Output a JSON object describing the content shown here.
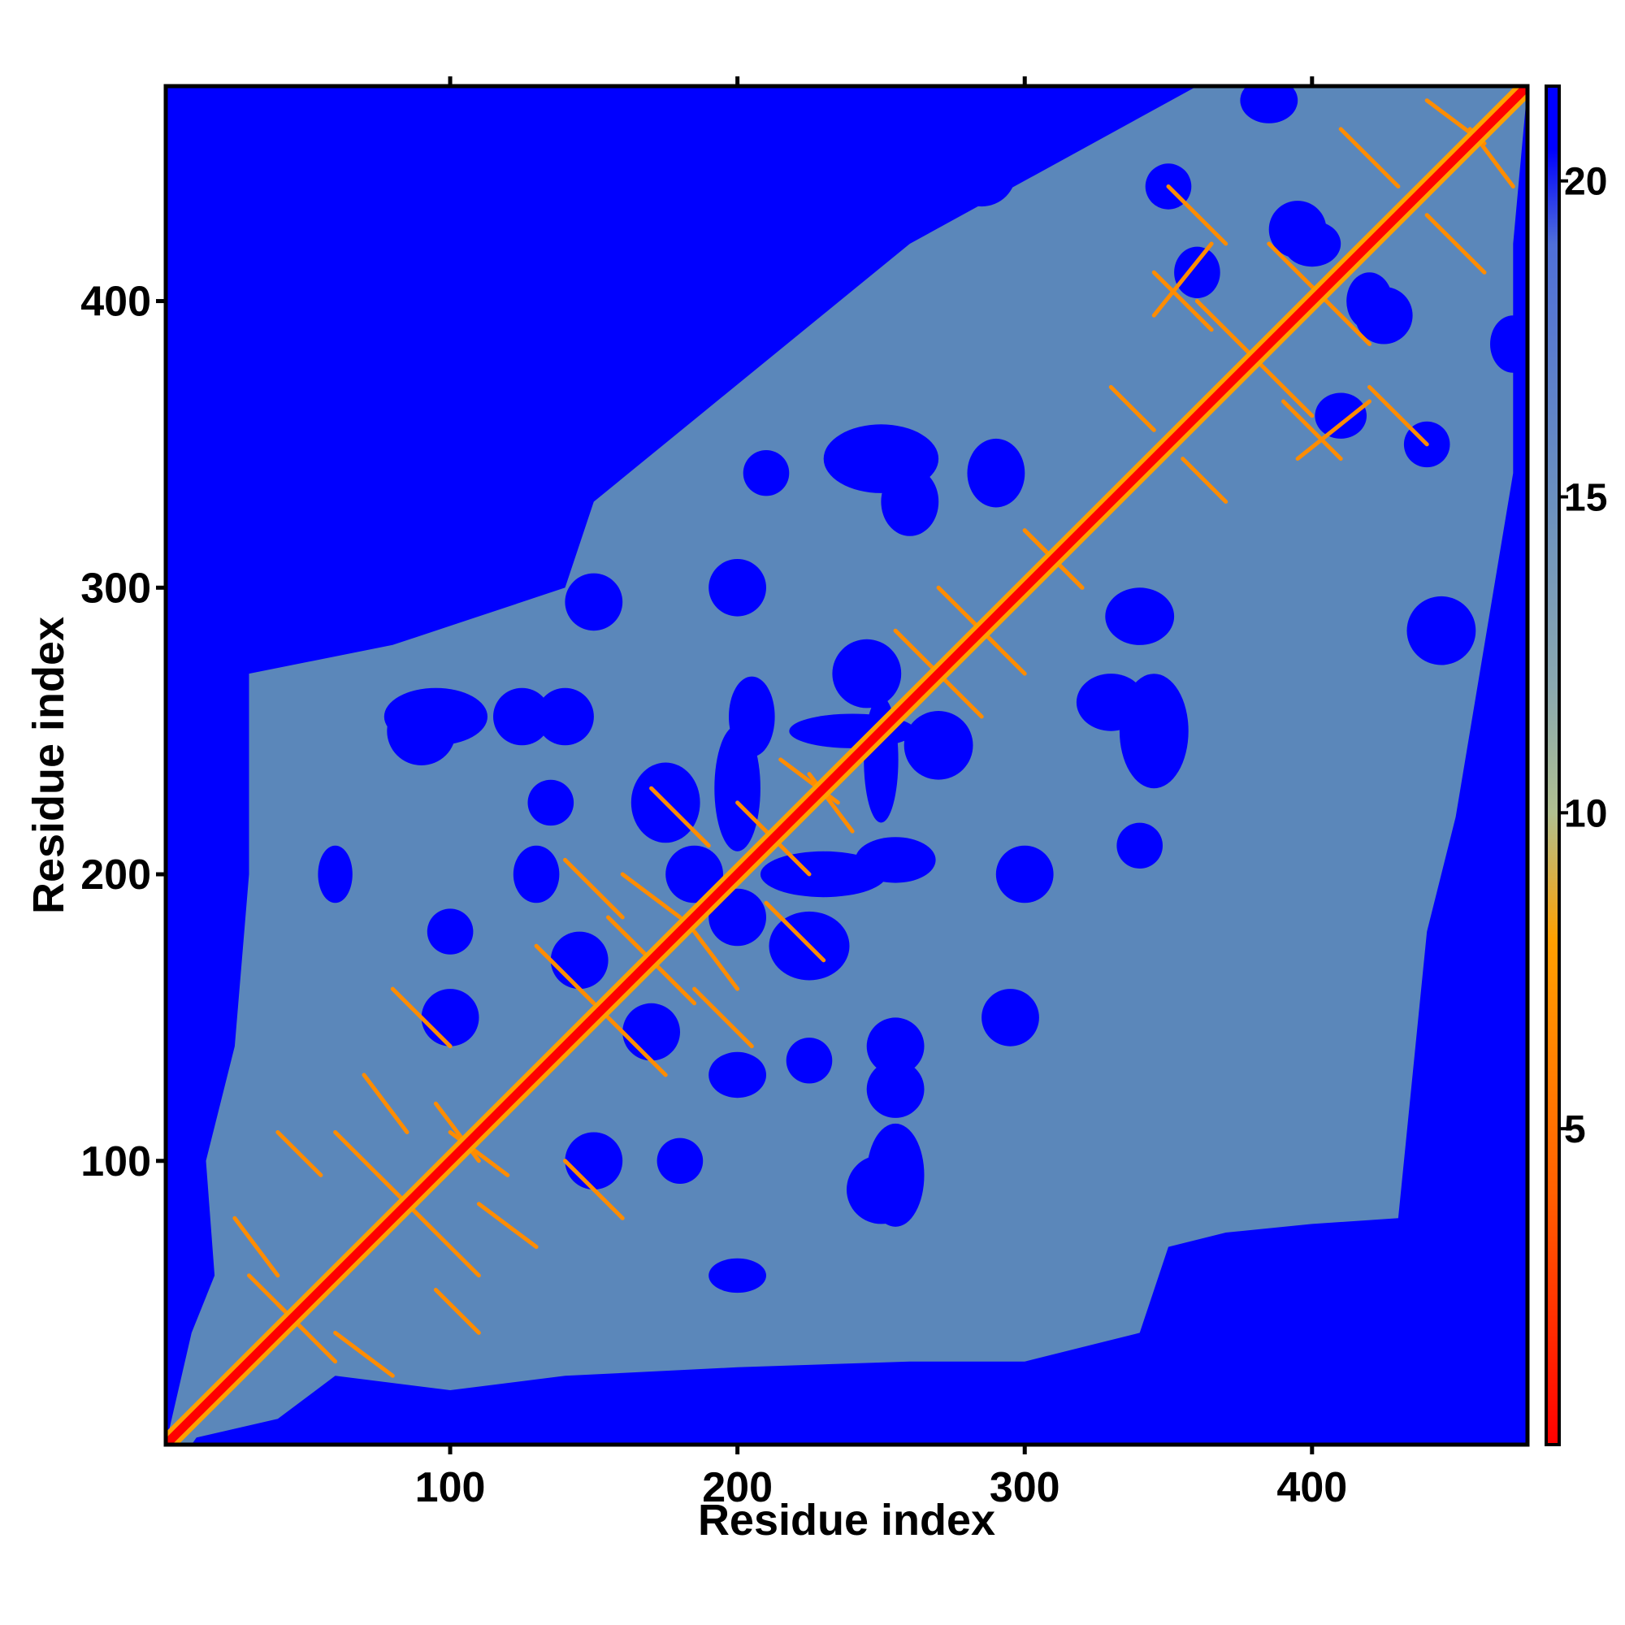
{
  "chart_data": {
    "type": "heatmap",
    "title": "",
    "xlabel": "Residue index",
    "ylabel": "Residue index",
    "xlim": [
      1,
      475
    ],
    "ylim": [
      1,
      475
    ],
    "x_ticks": [
      100,
      200,
      300,
      400
    ],
    "y_ticks": [
      100,
      200,
      300,
      400
    ],
    "colorbar": {
      "ticks": [
        5,
        10,
        15,
        20
      ],
      "range": [
        0,
        21.5
      ],
      "stops": [
        {
          "value": 0,
          "color": "#ff0000"
        },
        {
          "value": 4,
          "color": "#ff6000"
        },
        {
          "value": 8,
          "color": "#ffa000"
        },
        {
          "value": 10,
          "color": "#b0c090"
        },
        {
          "value": 12,
          "color": "#8aa8b0"
        },
        {
          "value": 15,
          "color": "#6a8fbf"
        },
        {
          "value": 19,
          "color": "#4f6fd8"
        },
        {
          "value": 20.5,
          "color": "#0000ff"
        },
        {
          "value": 21.5,
          "color": "#0000ff"
        }
      ]
    },
    "background_color": "#0000ff",
    "mid_color": "#5b87ba",
    "contact_color": "#ff8c00",
    "diagonal_color": "#ff0000",
    "grid": false,
    "legend": "colorbar-right"
  }
}
